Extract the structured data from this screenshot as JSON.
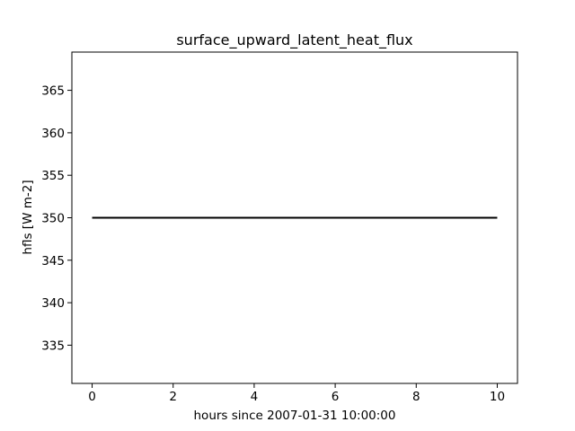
{
  "chart_data": {
    "type": "line",
    "title": "surface_upward_latent_heat_flux",
    "xlabel": "hours since 2007-01-31 10:00:00",
    "ylabel": "hfls [W m-2]",
    "xlim": [
      -0.5,
      10.5
    ],
    "ylim": [
      330.5,
      369.5
    ],
    "xticks": [
      0,
      2,
      4,
      6,
      8,
      10
    ],
    "yticks": [
      335,
      340,
      345,
      350,
      355,
      360,
      365
    ],
    "grid": false,
    "series": [
      {
        "x": [
          0,
          1,
          2,
          3,
          4,
          5,
          6,
          7,
          8,
          9,
          10
        ],
        "y": [
          350,
          350,
          350,
          350,
          350,
          350,
          350,
          350,
          350,
          350,
          350
        ],
        "color": "#000000"
      }
    ]
  }
}
